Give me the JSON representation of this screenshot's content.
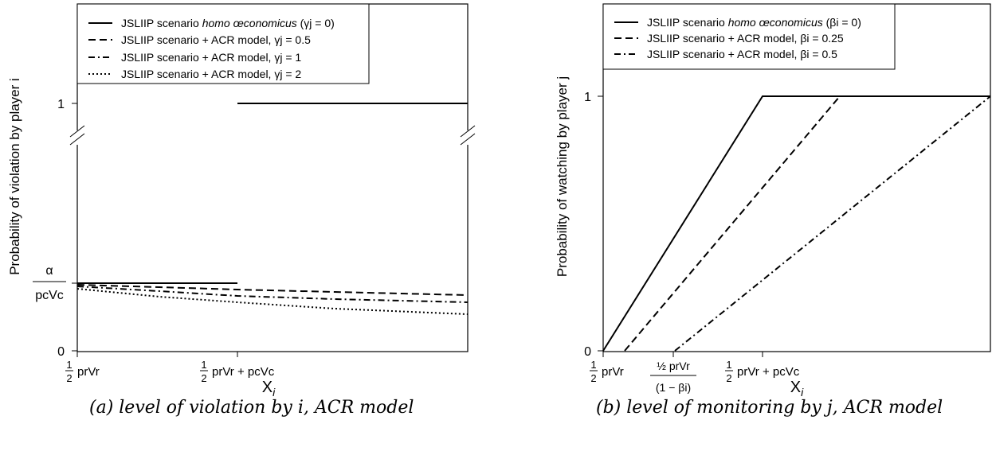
{
  "chart_data": [
    {
      "type": "line",
      "ylabel": "Probability of violation by player i",
      "xlabel": "X_i",
      "y_ticks": [
        "1",
        "α / pcVc",
        "0"
      ],
      "x_ticks": [
        "½ prVr",
        "½ prVr + pcVc"
      ],
      "axis_break": true,
      "legend_position": "top",
      "series": [
        {
          "name": "JSLIIP scenario homo œconomicus (γj = 0)",
          "style": "solid",
          "segments": [
            [
              [
                0,
                0.35
              ],
              [
                1,
                0.35
              ]
            ],
            [
              [
                1,
                1
              ],
              [
                2.45,
                1
              ]
            ]
          ]
        },
        {
          "name": "JSLIIP scenario + ACR model, γj = 0.5",
          "style": "dashed",
          "x": [
            0,
            1,
            2.45
          ],
          "y": [
            0.34,
            0.318,
            0.29
          ]
        },
        {
          "name": "JSLIIP scenario + ACR model, γj = 1",
          "style": "dashdot",
          "x": [
            0,
            1,
            2.45
          ],
          "y": [
            0.335,
            0.295,
            0.25
          ]
        },
        {
          "name": "JSLIIP scenario + ACR model, γj = 2",
          "style": "dotted",
          "x": [
            0,
            1,
            2.45
          ],
          "y": [
            0.325,
            0.25,
            0.19
          ]
        }
      ]
    },
    {
      "type": "line",
      "ylabel": "Probability of watching by player j",
      "xlabel": "X_i",
      "y_ticks": [
        "1",
        "0"
      ],
      "x_ticks": [
        "½ prVr",
        "½ prVr / (1 − βi)",
        "½ prVr + pcVc"
      ],
      "legend_position": "top",
      "series": [
        {
          "name": "JSLIIP scenario homo œconomicus (βi = 0)",
          "style": "solid",
          "x": [
            0,
            1,
            3.4
          ],
          "y": [
            0,
            1,
            1
          ]
        },
        {
          "name": "JSLIIP scenario + ACR model, βi = 0.25",
          "style": "dashed",
          "x": [
            0.133,
            1.47,
            3.4
          ],
          "y": [
            0,
            1,
            1
          ]
        },
        {
          "name": "JSLIIP scenario + ACR model, βi = 0.5",
          "style": "dashdot",
          "x": [
            0.45,
            3.4
          ],
          "y": [
            0,
            1
          ]
        }
      ]
    }
  ],
  "captions": {
    "a": "(a) level of violation by i, ACR model",
    "b": "(b) level of monitoring by j, ACR model"
  },
  "panel_a": {
    "ylabel": "Probability of violation by player i",
    "ylabel_var": "i",
    "xlabel_main": "X",
    "xlabel_sub": "i",
    "legend": [
      {
        "pre": "JSLIIP scenario ",
        "em": "homo œconomicus",
        "post": " (γj = 0)"
      },
      {
        "pre": "JSLIIP scenario + ACR model, ",
        "em": "",
        "post": "γj = 0.5"
      },
      {
        "pre": "JSLIIP scenario + ACR model, ",
        "em": "",
        "post": "γj = 1"
      },
      {
        "pre": "JSLIIP scenario + ACR model, ",
        "em": "",
        "post": "γj = 2"
      }
    ],
    "ytick_one": "1",
    "ytick_zero": "0",
    "ytick_alpha": "α",
    "ytick_denominator": "pcVc",
    "xtick1_half": "1",
    "xtick1_half_den": "2",
    "xtick1_expr": "prVr",
    "xtick2_expr": "prVr + pcVc"
  },
  "panel_b": {
    "ylabel": "Probability of watching by player j",
    "ylabel_var": "j",
    "xlabel_main": "X",
    "xlabel_sub": "i",
    "legend": [
      {
        "pre": "JSLIIP scenario ",
        "em": "homo œconomicus",
        "post": " (βi = 0)"
      },
      {
        "pre": "JSLIIP scenario + ACR model, ",
        "em": "",
        "post": "βi = 0.25"
      },
      {
        "pre": "JSLIIP scenario + ACR model, ",
        "em": "",
        "post": "βi = 0.5"
      }
    ],
    "ytick_one": "1",
    "ytick_zero": "0",
    "xtick1_half": "1",
    "xtick1_half_den": "2",
    "xtick1_expr": "prVr",
    "xtick2_num": "½ prVr",
    "xtick2_den": "(1 − βi)",
    "xtick3_expr": "prVr + pcVc"
  },
  "colors": {
    "line": "#000000",
    "background": "#ffffff"
  }
}
